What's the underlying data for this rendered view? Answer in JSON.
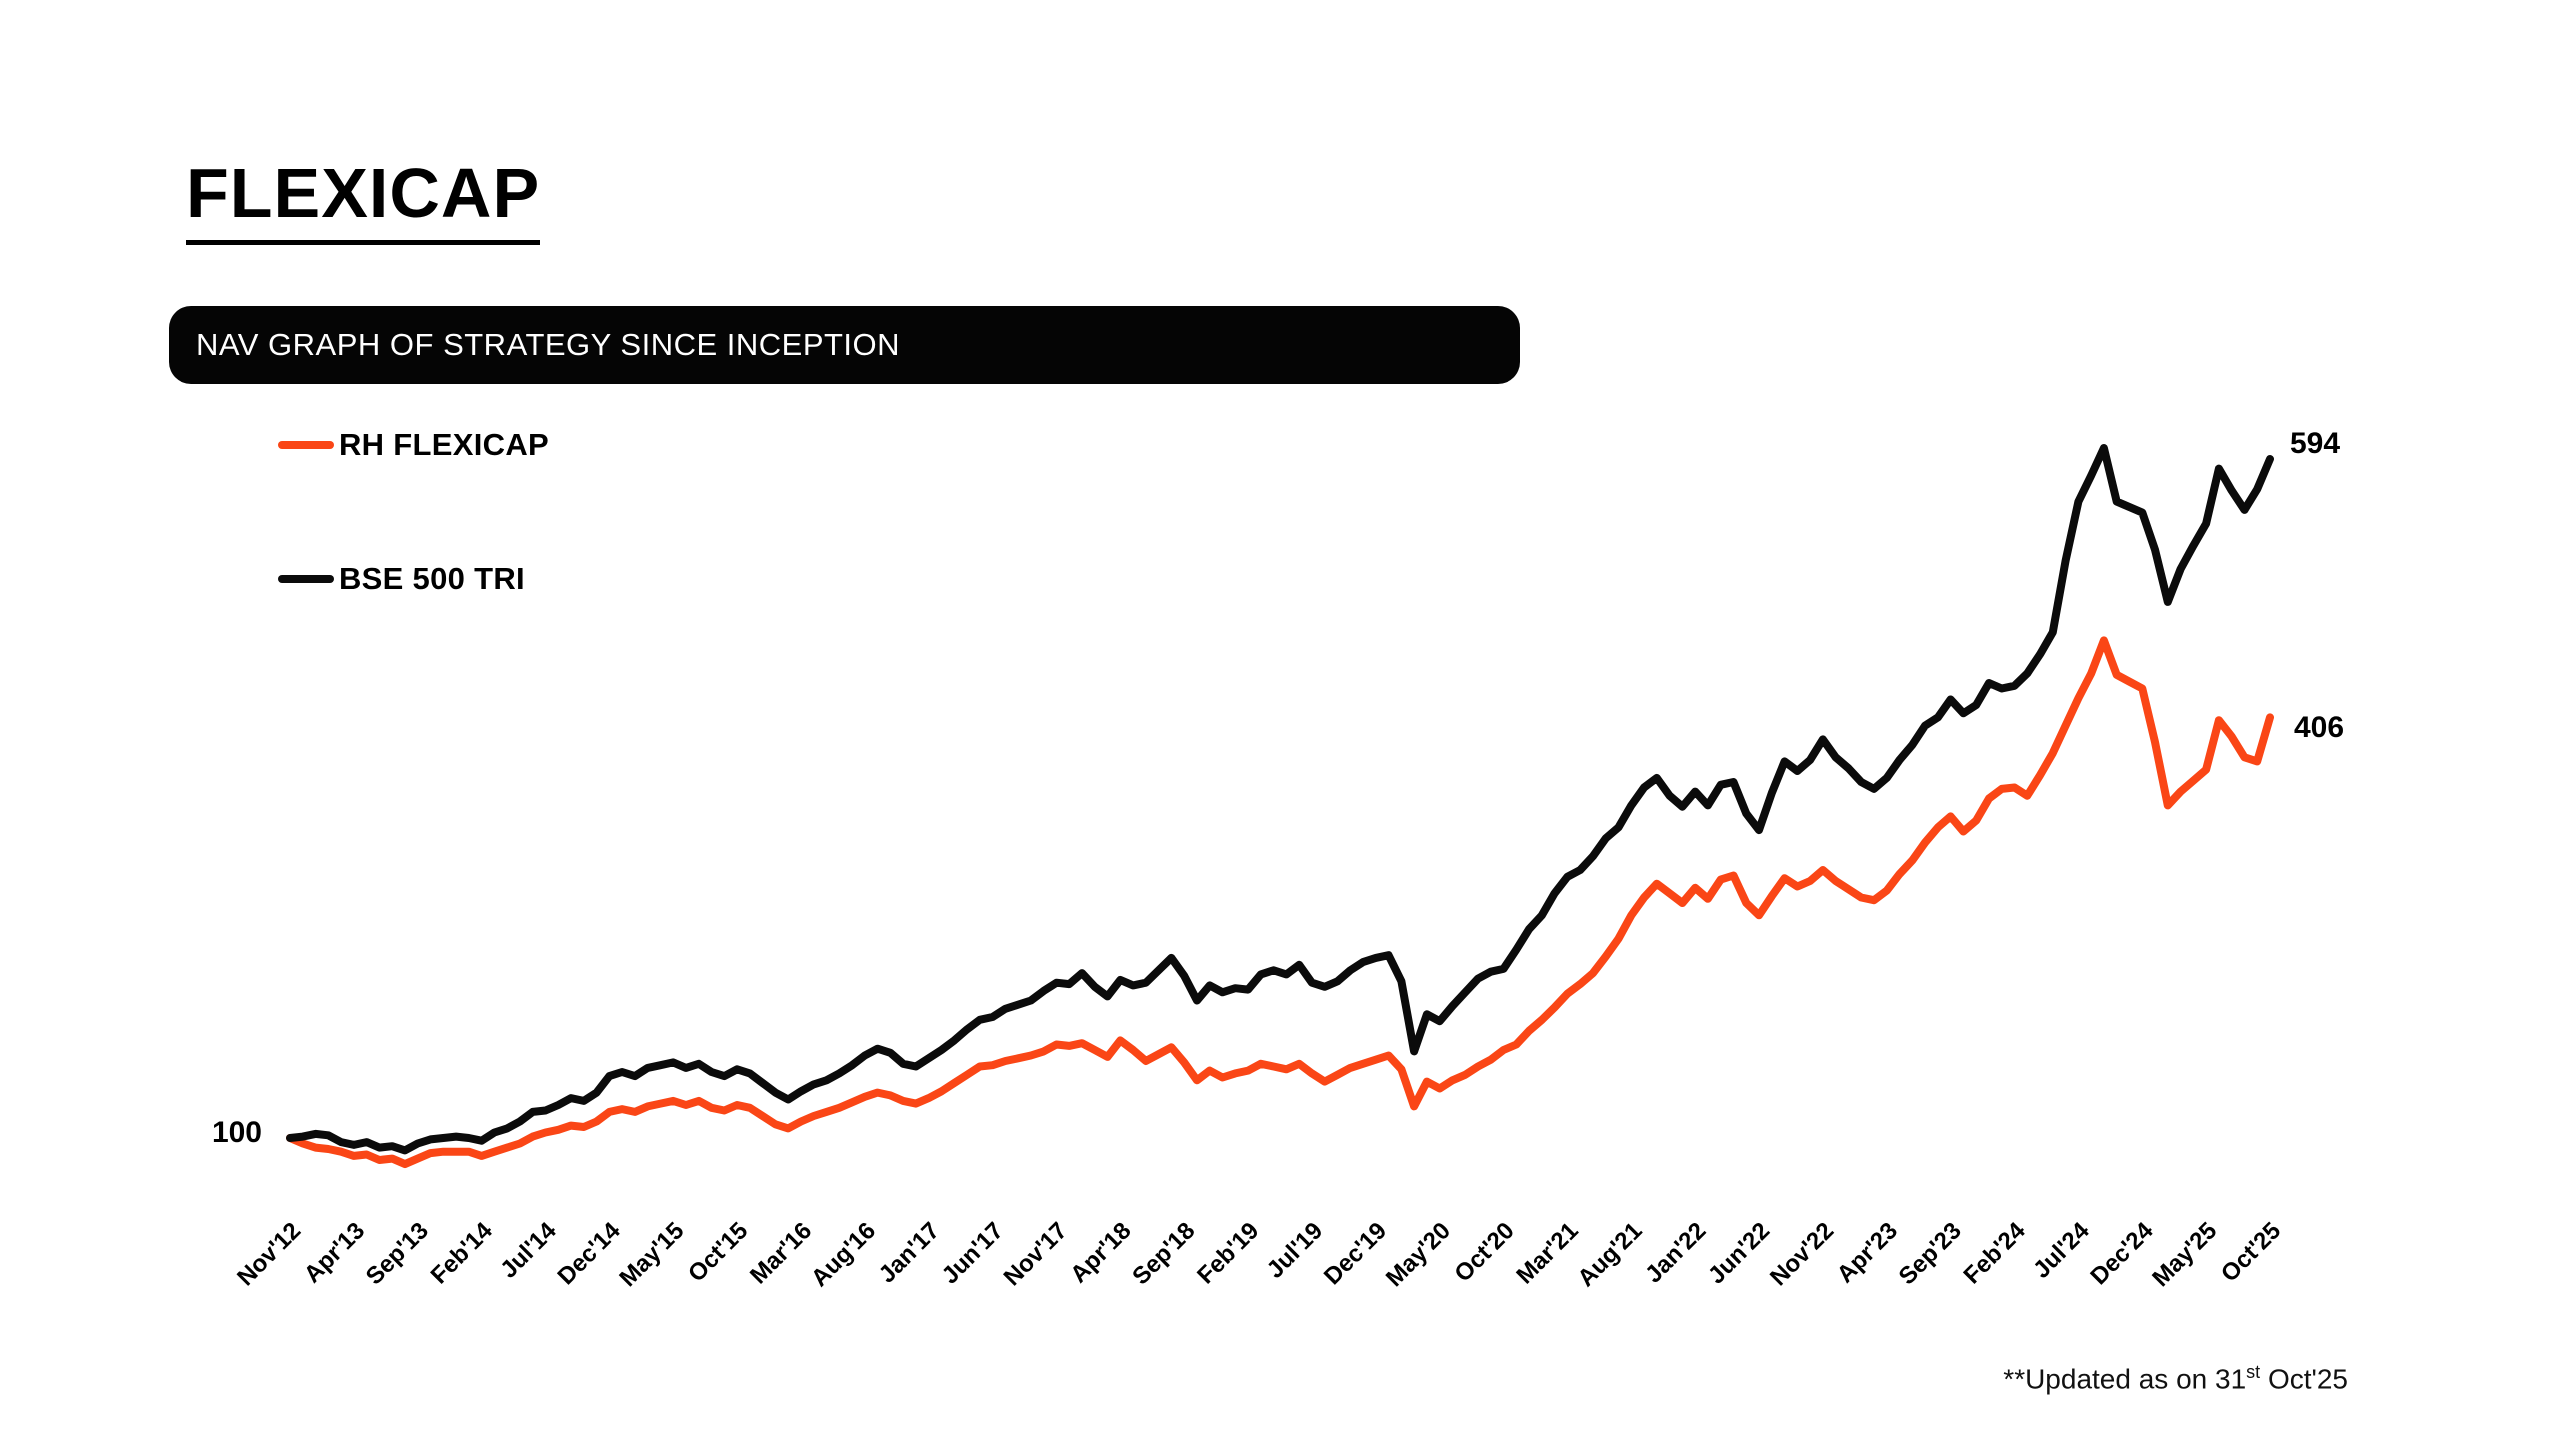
{
  "page": {
    "title": "FLEXICAP"
  },
  "banner": {
    "text": "NAV GRAPH OF STRATEGY SINCE INCEPTION"
  },
  "legend": {
    "items": [
      {
        "label": "RH FLEXICAP",
        "color": "#FA4616"
      },
      {
        "label": "BSE 500 TRI",
        "color": "#0B0B0B"
      }
    ]
  },
  "footnote": {
    "prefix": "**Updated as on 31",
    "sup": "st",
    "suffix": " Oct'25"
  },
  "chart_data": {
    "type": "line",
    "title": "NAV GRAPH OF STRATEGY SINCE INCEPTION",
    "x_start": "Nov'12",
    "x_end": "Oct'25",
    "x_frequency": "monthly",
    "x_tick_every_n_months": 5,
    "x_tick_labels": [
      "Nov'12",
      "Apr'13",
      "Sep'13",
      "Feb'14",
      "Jul'14",
      "Dec'14",
      "May'15",
      "Oct'15",
      "Mar'16",
      "Aug'16",
      "Jan'17",
      "Jun'17",
      "Nov'17",
      "Apr'18",
      "Sep'18",
      "Feb'19",
      "Jul'19",
      "Dec'19",
      "May'20",
      "Oct'20",
      "Mar'21",
      "Aug'21",
      "Jan'22",
      "Jun'22",
      "Nov'22",
      "Apr'23",
      "Sep'23",
      "Feb'24",
      "Jul'24",
      "Dec'24",
      "May'25",
      "Oct'25"
    ],
    "y_axis": {
      "start_label": "100",
      "base_value": 100,
      "gridlines": false,
      "axis_lines": false
    },
    "legend_position": "top-left",
    "series": [
      {
        "name": "RH FLEXICAP",
        "color": "#FA4616",
        "end_label": "406",
        "end_value": 406,
        "values": [
          100,
          96,
          93,
          92,
          90,
          87,
          88,
          84,
          85,
          81,
          85,
          89,
          90,
          90,
          90,
          87,
          90,
          93,
          96,
          101,
          104,
          106,
          109,
          108,
          112,
          119,
          121,
          119,
          123,
          125,
          127,
          124,
          127,
          122,
          120,
          124,
          122,
          116,
          110,
          107,
          112,
          116,
          119,
          122,
          126,
          130,
          133,
          131,
          127,
          125,
          129,
          134,
          140,
          146,
          152,
          153,
          156,
          158,
          160,
          163,
          168,
          167,
          169,
          164,
          159,
          171,
          164,
          156,
          161,
          166,
          155,
          142,
          149,
          144,
          147,
          149,
          154,
          152,
          150,
          154,
          147,
          141,
          146,
          151,
          154,
          157,
          160,
          150,
          123,
          141,
          136,
          142,
          146,
          152,
          157,
          164,
          168,
          178,
          186,
          195,
          205,
          212,
          220,
          232,
          245,
          262,
          275,
          285,
          278,
          271,
          282,
          274,
          288,
          291,
          271,
          262,
          276,
          289,
          283,
          287,
          295,
          287,
          281,
          275,
          273,
          280,
          292,
          302,
          315,
          326,
          334,
          323,
          331,
          347,
          354,
          355,
          349,
          364,
          380,
          400,
          420,
          438,
          462,
          437,
          432,
          427,
          388,
          342,
          352,
          360,
          368,
          404,
          392,
          377,
          374,
          406
        ]
      },
      {
        "name": "BSE 500 TRI",
        "color": "#0B0B0B",
        "end_label": "594",
        "end_value": 594,
        "values": [
          100,
          101,
          103,
          102,
          97,
          95,
          97,
          93,
          94,
          91,
          96,
          99,
          100,
          101,
          100,
          98,
          104,
          107,
          112,
          119,
          120,
          124,
          129,
          127,
          133,
          145,
          148,
          145,
          151,
          153,
          155,
          151,
          154,
          148,
          145,
          150,
          147,
          140,
          133,
          128,
          134,
          139,
          142,
          147,
          153,
          160,
          165,
          162,
          154,
          152,
          158,
          164,
          171,
          179,
          186,
          188,
          194,
          197,
          200,
          207,
          213,
          212,
          220,
          210,
          203,
          215,
          211,
          213,
          222,
          231,
          218,
          200,
          211,
          206,
          209,
          208,
          219,
          222,
          219,
          226,
          213,
          210,
          214,
          222,
          228,
          231,
          233,
          214,
          163,
          190,
          185,
          196,
          206,
          216,
          221,
          223,
          237,
          252,
          262,
          278,
          290,
          295,
          305,
          318,
          326,
          342,
          355,
          362,
          349,
          341,
          352,
          342,
          357,
          359,
          336,
          324,
          351,
          374,
          367,
          375,
          390,
          377,
          369,
          359,
          354,
          362,
          375,
          386,
          400,
          406,
          419,
          409,
          415,
          431,
          427,
          429,
          438,
          452,
          468,
          520,
          563,
          582,
          602,
          563,
          559,
          555,
          528,
          490,
          514,
          531,
          547,
          587,
          571,
          557,
          572,
          594
        ]
      }
    ]
  }
}
